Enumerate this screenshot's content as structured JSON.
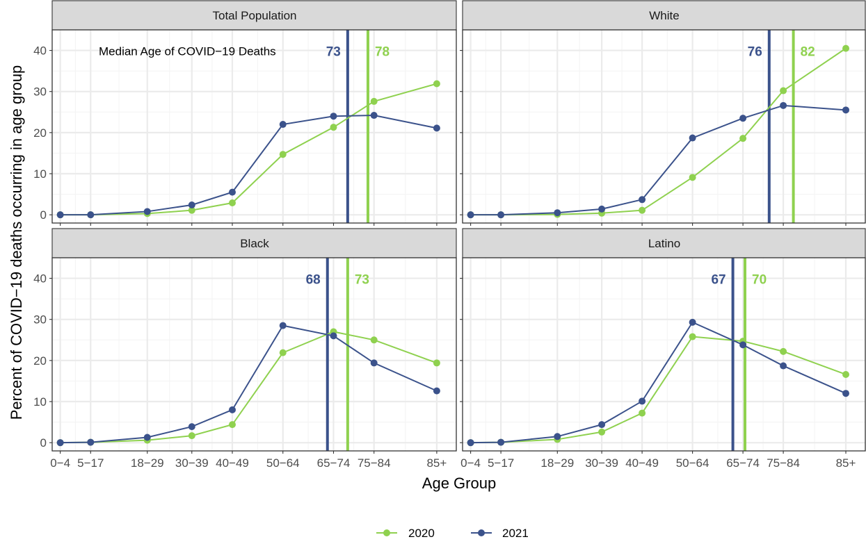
{
  "chart_data": {
    "type": "line",
    "xlabel": "Age Group",
    "ylabel": "Percent of COVID−19 deaths occurring in age group",
    "ylim": [
      -2,
      45
    ],
    "y_ticks": [
      0,
      10,
      20,
      30,
      40
    ],
    "categories": [
      "0−4",
      "5−17",
      "18−29",
      "30−39",
      "40−49",
      "50−64",
      "65−74",
      "75−84",
      "85+"
    ],
    "category_positions": [
      2,
      9.5,
      23.5,
      34.5,
      44.5,
      57,
      69.5,
      79.5,
      95
    ],
    "xlim": [
      0,
      100
    ],
    "grid": true,
    "legend_position": "bottom",
    "annotation": "Median Age of COVID−19 Deaths",
    "colors": {
      "2020": "#8fd14f",
      "2021": "#3b528b"
    },
    "panels": [
      {
        "title": "Total Population",
        "series": [
          {
            "name": "2020",
            "values": [
              0,
              0,
              0.3,
              1.1,
              2.9,
              14.7,
              21.3,
              27.6,
              31.9
            ]
          },
          {
            "name": "2021",
            "values": [
              0,
              0,
              0.8,
              2.4,
              5.5,
              22.0,
              24.0,
              24.2,
              21.1
            ]
          }
        ],
        "medians": {
          "2020": "78",
          "2021": "73"
        }
      },
      {
        "title": "White",
        "series": [
          {
            "name": "2020",
            "values": [
              0,
              0,
              0.1,
              0.4,
              1.1,
              9.1,
              18.6,
              30.2,
              40.5
            ]
          },
          {
            "name": "2021",
            "values": [
              0,
              0,
              0.5,
              1.4,
              3.7,
              18.7,
              23.5,
              26.6,
              25.5
            ]
          }
        ],
        "medians": {
          "2020": "82",
          "2021": "76"
        }
      },
      {
        "title": "Black",
        "series": [
          {
            "name": "2020",
            "values": [
              0,
              0.1,
              0.6,
              1.7,
              4.4,
              21.9,
              27.0,
              25.0,
              19.4
            ]
          },
          {
            "name": "2021",
            "values": [
              0,
              0.1,
              1.3,
              3.9,
              8.0,
              28.5,
              26.0,
              19.4,
              12.6
            ]
          }
        ],
        "medians": {
          "2020": "73",
          "2021": "68"
        }
      },
      {
        "title": "Latino",
        "series": [
          {
            "name": "2020",
            "values": [
              0,
              0.1,
              0.8,
              2.6,
              7.2,
              25.8,
              24.7,
              22.2,
              16.6
            ]
          },
          {
            "name": "2021",
            "values": [
              0,
              0.1,
              1.5,
              4.4,
              10.1,
              29.3,
              23.8,
              18.7,
              12.0
            ]
          }
        ],
        "medians": {
          "2020": "70",
          "2021": "67"
        }
      }
    ]
  },
  "legend": {
    "items": [
      "2020",
      "2021"
    ]
  }
}
